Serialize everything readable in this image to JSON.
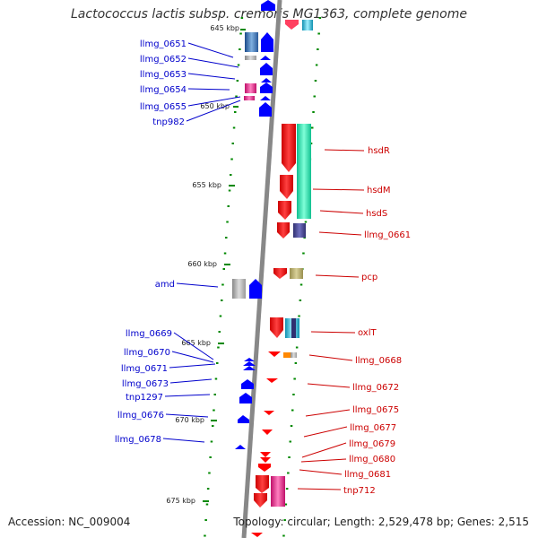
{
  "title": "Lactococcus lactis subsp. cremoris MG1363, complete genome",
  "footer": {
    "accession": "Accession: NC_009004",
    "topology": "Topology: circular; Length: 2,529,478 bp; Genes: 2,515"
  },
  "kbp_marks": [
    "645 kbp",
    "650 kbp",
    "655 kbp",
    "660 kbp",
    "665 kbp",
    "670 kbp",
    "675 kbp"
  ],
  "left_genes": [
    "llmg_0651",
    "llmg_0652",
    "llmg_0653",
    "llmg_0654",
    "llmg_0655",
    "tnp982",
    "amd",
    "llmg_0669",
    "llmg_0670",
    "llmg_0671",
    "llmg_0673",
    "tnp1297",
    "llmg_0676",
    "llmg_0678"
  ],
  "right_genes": [
    "hsdR",
    "hsdM",
    "hsdS",
    "llmg_0661",
    "pcp",
    "oxlT",
    "llmg_0668",
    "llmg_0672",
    "llmg_0675",
    "llmg_0677",
    "llmg_0679",
    "llmg_0680",
    "llmg_0681",
    "tnp712"
  ],
  "colors": {
    "forward": "#0000ff",
    "reverse": "#ff0000",
    "left_label": "#0000cc",
    "right_label": "#cc0000",
    "backbone": "#888888",
    "tick": "#008800"
  }
}
